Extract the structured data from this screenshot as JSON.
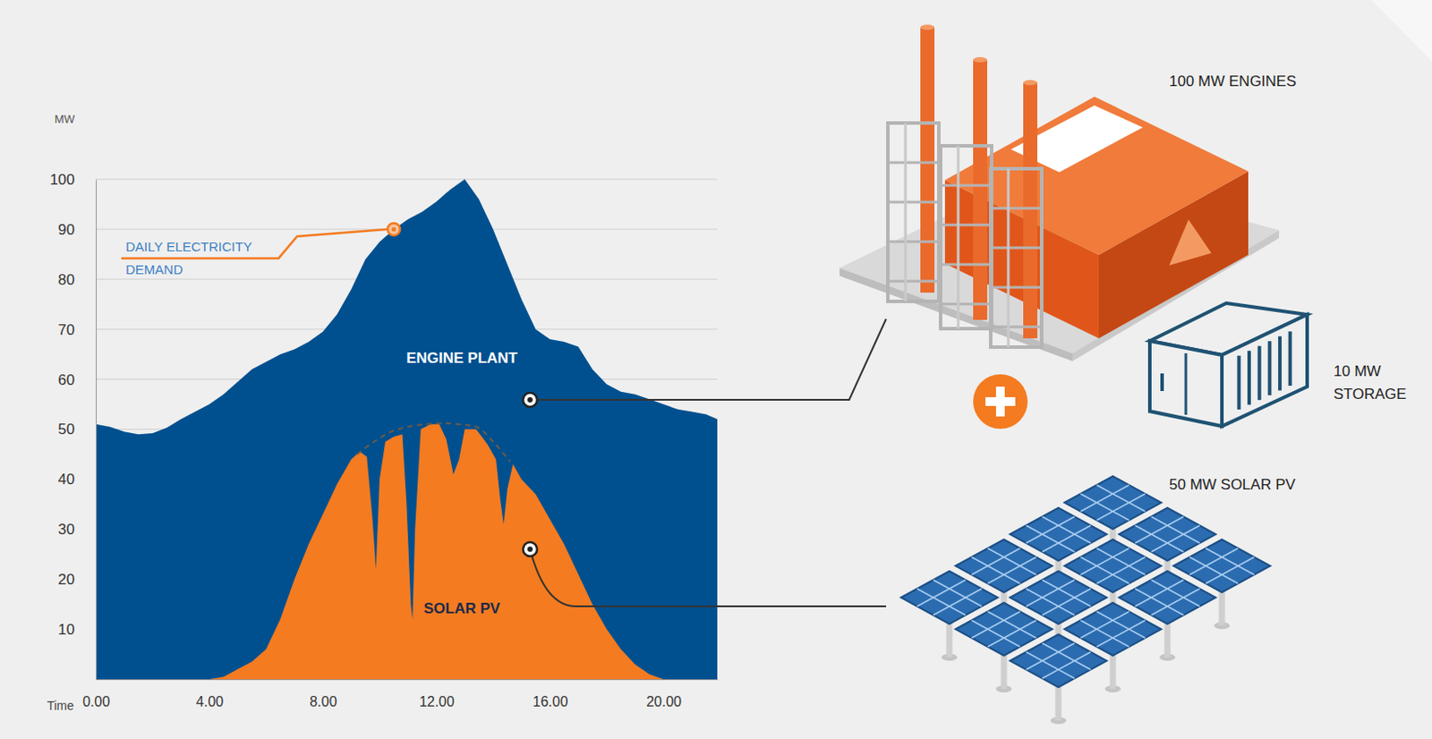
{
  "chart_data": {
    "type": "area",
    "x_label": "Time",
    "y_label": "MW",
    "xlim": [
      0,
      21.9
    ],
    "xticks": [
      {
        "value": 0,
        "label": "0.00"
      },
      {
        "value": 4,
        "label": "4.00"
      },
      {
        "value": 8,
        "label": "8.00"
      },
      {
        "value": 12,
        "label": "12.00"
      },
      {
        "value": 16,
        "label": "16.00"
      },
      {
        "value": 20,
        "label": "20.00"
      }
    ],
    "ylim": [
      0,
      100
    ],
    "yticks": [
      10,
      20,
      30,
      40,
      50,
      60,
      70,
      80,
      90,
      100
    ],
    "grid": true,
    "series": [
      {
        "type": "area",
        "color": "#00508f",
        "x": [
          0,
          0.5,
          1,
          1.5,
          2,
          2.5,
          3,
          3.5,
          4,
          4.5,
          5,
          5.5,
          6,
          6.5,
          7,
          7.5,
          8,
          8.5,
          9,
          9.5,
          10,
          10.5,
          11,
          11.5,
          12,
          12.5,
          13,
          13.5,
          14,
          14.5,
          15,
          15.5,
          16,
          16.5,
          17,
          17.5,
          18,
          18.5,
          19,
          19.5,
          20,
          20.5,
          21,
          21.5,
          21.9
        ],
        "values": [
          51,
          50.5,
          49.5,
          49,
          49.2,
          50.3,
          52,
          53.5,
          55,
          57,
          59.5,
          62,
          63.5,
          65,
          66,
          67.5,
          69.5,
          73,
          78,
          84,
          87.5,
          90,
          92,
          93.5,
          95.5,
          98,
          100,
          96,
          90,
          83,
          76,
          70,
          68,
          67.5,
          66.5,
          62,
          59,
          57.5,
          57,
          56,
          55,
          54,
          53.5,
          53,
          52
        ]
      },
      {
        "type": "area",
        "color": "#f47b20",
        "x": [
          4,
          4.5,
          5,
          5.5,
          6,
          6.5,
          7,
          7.5,
          8,
          8.5,
          9,
          9.3,
          9.55,
          9.75,
          9.87,
          10,
          10.2,
          10.5,
          10.8,
          10.95,
          11.1,
          11.16,
          11.25,
          11.45,
          11.8,
          12.1,
          12.35,
          12.6,
          12.8,
          13,
          13.4,
          13.8,
          14.1,
          14.25,
          14.37,
          14.5,
          14.7,
          15,
          15.5,
          16,
          16.5,
          17,
          17.5,
          18,
          18.5,
          19,
          19.5,
          20
        ],
        "values": [
          0,
          0.5,
          2,
          3.5,
          6,
          12,
          20,
          27,
          33,
          39,
          44,
          45.5,
          44.5,
          32,
          22,
          40,
          47.5,
          48.5,
          49,
          35,
          15,
          12,
          30,
          50,
          51,
          51,
          48,
          41,
          44,
          50,
          50,
          47,
          44,
          36,
          31,
          38,
          43,
          40,
          37,
          32,
          27,
          21,
          15,
          10,
          6,
          3,
          1,
          0
        ]
      },
      {
        "type": "line",
        "line_style": "dashed",
        "color": "#6b5a4a",
        "x": [
          9.2,
          9.8,
          10.4,
          11,
          11.6,
          12.2,
          12.8,
          13.4,
          14,
          14.6
        ],
        "values": [
          45,
          47.5,
          49.5,
          50.5,
          51,
          51.2,
          51,
          50.5,
          47.5,
          43.5
        ]
      }
    ],
    "annotations": [
      {
        "text": "DAILY ELECTRICITY DEMAND",
        "x": 10.5,
        "y": 90,
        "marker": "circle",
        "color": "#3b7fc4"
      },
      {
        "text": "ENGINE PLANT",
        "x": 12.9,
        "y": 64,
        "color": "#ffffff"
      },
      {
        "text": "SOLAR PV",
        "x": 12.9,
        "y": 14,
        "color": "#1b2a4a"
      }
    ]
  },
  "components": [
    {
      "label": "100 MW ENGINES"
    },
    {
      "label": "10 MW STORAGE"
    },
    {
      "label": "50 MW SOLAR PV"
    }
  ]
}
